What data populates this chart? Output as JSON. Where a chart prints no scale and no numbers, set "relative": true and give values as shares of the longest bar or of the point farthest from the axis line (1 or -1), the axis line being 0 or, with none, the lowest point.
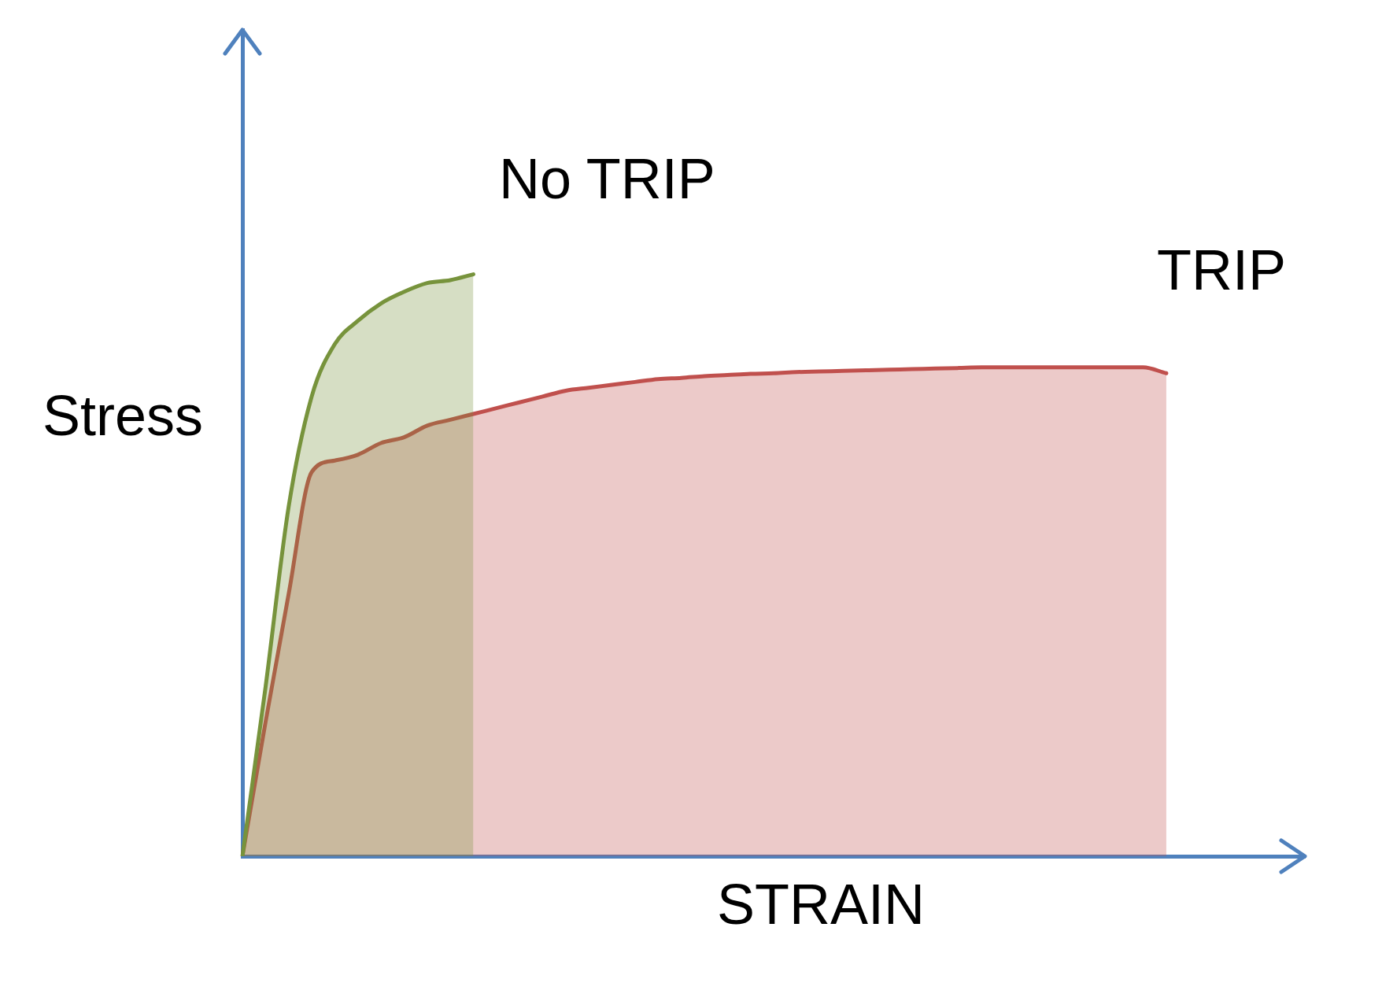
{
  "chart_data": {
    "type": "area",
    "xlabel": "STRAIN",
    "ylabel": "Stress",
    "relative": true,
    "legend": false,
    "marker": "none",
    "categories": [
      null,
      null,
      null,
      null,
      null,
      null,
      null,
      null,
      null,
      null,
      null,
      null,
      null,
      null,
      null,
      null,
      null,
      null,
      null,
      null,
      null,
      null,
      null,
      null,
      null,
      null,
      null,
      null,
      null,
      null,
      null,
      null,
      null,
      null,
      null,
      null,
      null,
      null,
      null,
      null,
      null
    ],
    "series": [
      {
        "name": "No TRIP",
        "color": "#77933c",
        "values": [
          0,
          0.29,
          0.6,
          0.79,
          0.88,
          0.92,
          0.95,
          0.97,
          0.985,
          0.99,
          1,
          null,
          null,
          null,
          null,
          null,
          null,
          null,
          null,
          null,
          null,
          null,
          null,
          null,
          null,
          null,
          null,
          null,
          null,
          null,
          null,
          null,
          null,
          null,
          null,
          null,
          null,
          null,
          null,
          null,
          null
        ]
      },
      {
        "name": "TRIP",
        "color": "#c0504d",
        "values": [
          0,
          0.23,
          0.45,
          0.66,
          0.68,
          0.69,
          0.71,
          0.72,
          0.74,
          0.75,
          0.76,
          0.77,
          0.78,
          0.79,
          0.8,
          0.805,
          0.81,
          0.815,
          0.82,
          0.822,
          0.825,
          0.827,
          0.829,
          0.83,
          0.832,
          0.833,
          0.834,
          0.835,
          0.836,
          0.837,
          0.838,
          0.839,
          0.84,
          0.84,
          0.84,
          0.84,
          0.84,
          0.84,
          0.84,
          0.84,
          0.83
        ]
      }
    ]
  }
}
